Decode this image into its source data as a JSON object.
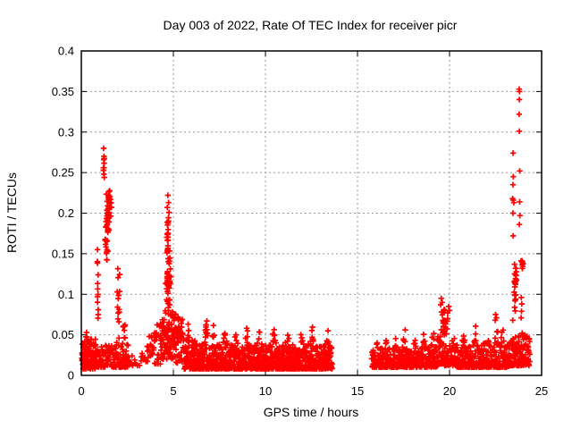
{
  "window": {
    "background_color": "#ffffff"
  },
  "chart_data": {
    "type": "scatter",
    "title": "Day 003 of 2022, Rate Of TEC Index for receiver picr",
    "xlabel": "GPS time / hours",
    "ylabel": "ROTI / TECUs",
    "xlim": [
      0,
      25
    ],
    "ylim": [
      0,
      0.4
    ],
    "xticks": [
      [
        "0",
        0
      ],
      [
        "5",
        5
      ],
      [
        "10",
        10
      ],
      [
        "15",
        15
      ],
      [
        "20",
        20
      ],
      [
        "25",
        25
      ]
    ],
    "yticks": [
      [
        "0",
        0
      ],
      [
        "0.05",
        0.05
      ],
      [
        "0.1",
        0.1
      ],
      [
        "0.15",
        0.15
      ],
      [
        "0.2",
        0.2
      ],
      [
        "0.25",
        0.25
      ],
      [
        "0.3",
        0.3
      ],
      [
        "0.35",
        0.35
      ],
      [
        "0.4",
        0.4
      ]
    ],
    "grid": true,
    "legend": "none",
    "series_name": "ROTI",
    "marker": {
      "shape": "plus",
      "color": "#ff0000",
      "size": 7,
      "stroke_width": 1.7
    },
    "grid_color": "#9a9a9a",
    "border_color": "#000000",
    "data_gaps_hours": [
      [
        13.62,
        15.78
      ]
    ],
    "bands": [
      {
        "x0": 0.03,
        "x1": 0.8,
        "ymin": 0.008,
        "ymax": 0.045,
        "step": 0.022,
        "per": 3,
        "bias": 1.6,
        "bumps": [
          [
            0.25,
            0.01,
            0.1
          ]
        ]
      },
      {
        "x0": 0.8,
        "x1": 1.05,
        "ymin": 0.01,
        "ymax": 0.036,
        "step": 0.035,
        "per": 2,
        "bias": 1.5,
        "bumps": []
      },
      {
        "x0": 1.05,
        "x1": 2.6,
        "ymin": 0.01,
        "ymax": 0.038,
        "step": 0.03,
        "per": 2,
        "bias": 1.8,
        "bumps": [
          [
            2.05,
            0.014,
            0.18
          ]
        ]
      },
      {
        "x0": 2.6,
        "x1": 3.6,
        "ymin": 0.012,
        "ymax": 0.028,
        "step": 0.09,
        "per": 1,
        "bias": 1.5,
        "bumps": []
      },
      {
        "x0": 3.6,
        "x1": 4.3,
        "ymin": 0.014,
        "ymax": 0.052,
        "step": 0.04,
        "per": 2,
        "bias": 1.6,
        "bumps": [
          [
            4.15,
            0.018,
            0.12
          ]
        ]
      },
      {
        "x0": 4.3,
        "x1": 5.15,
        "ymin": 0.02,
        "ymax": 0.075,
        "step": 0.025,
        "per": 3,
        "bias": 1.4,
        "bumps": [
          [
            4.72,
            0.02,
            0.2
          ]
        ]
      },
      {
        "x0": 5.15,
        "x1": 5.6,
        "ymin": 0.015,
        "ymax": 0.055,
        "step": 0.03,
        "per": 2,
        "bias": 1.6,
        "bumps": []
      },
      {
        "x0": 5.6,
        "x1": 13.62,
        "ymin": 0.008,
        "ymax": 0.038,
        "step": 0.03,
        "per": 4,
        "bias": 2.0,
        "bumps": [
          [
            5.8,
            0.028,
            0.08
          ],
          [
            6.1,
            0.016,
            0.08
          ],
          [
            6.78,
            0.036,
            0.08
          ],
          [
            7.15,
            0.032,
            0.07
          ],
          [
            7.8,
            0.02,
            0.09
          ],
          [
            8.35,
            0.016,
            0.09
          ],
          [
            9.0,
            0.024,
            0.09
          ],
          [
            9.65,
            0.018,
            0.09
          ],
          [
            10.45,
            0.022,
            0.09
          ],
          [
            11.2,
            0.016,
            0.09
          ],
          [
            11.95,
            0.014,
            0.09
          ],
          [
            12.55,
            0.024,
            0.09
          ],
          [
            13.35,
            0.024,
            0.08
          ]
        ]
      },
      {
        "x0": 15.78,
        "x1": 19.35,
        "ymin": 0.01,
        "ymax": 0.035,
        "step": 0.03,
        "per": 3,
        "bias": 2.0,
        "bumps": [
          [
            16.1,
            0.014,
            0.08
          ],
          [
            16.55,
            0.01,
            0.08
          ],
          [
            17.1,
            0.014,
            0.08
          ],
          [
            17.55,
            0.026,
            0.07
          ],
          [
            18.1,
            0.012,
            0.08
          ],
          [
            18.6,
            0.016,
            0.08
          ],
          [
            19.1,
            0.026,
            0.07
          ]
        ]
      },
      {
        "x0": 19.35,
        "x1": 20.35,
        "ymin": 0.012,
        "ymax": 0.048,
        "step": 0.03,
        "per": 3,
        "bias": 1.7,
        "bumps": [
          [
            19.7,
            0.022,
            0.18
          ]
        ]
      },
      {
        "x0": 20.35,
        "x1": 23.25,
        "ymin": 0.01,
        "ymax": 0.038,
        "step": 0.03,
        "per": 3,
        "bias": 2.0,
        "bumps": [
          [
            20.8,
            0.014,
            0.1
          ],
          [
            21.45,
            0.026,
            0.1
          ],
          [
            22.0,
            0.018,
            0.1
          ],
          [
            22.55,
            0.032,
            0.1
          ],
          [
            22.85,
            0.028,
            0.09
          ]
        ]
      },
      {
        "x0": 23.25,
        "x1": 24.35,
        "ymin": 0.012,
        "ymax": 0.048,
        "step": 0.025,
        "per": 3,
        "bias": 1.7,
        "bumps": [
          [
            23.95,
            0.012,
            0.15
          ]
        ]
      }
    ],
    "blobs": [
      [
        0.895,
        0.1,
        0.035,
        0.048,
        11
      ],
      [
        1.22,
        0.258,
        0.05,
        0.02,
        7
      ],
      [
        1.46,
        0.195,
        0.2,
        0.04,
        45
      ],
      [
        1.38,
        0.155,
        0.1,
        0.018,
        10
      ],
      [
        2.02,
        0.095,
        0.1,
        0.042,
        14
      ],
      [
        2.32,
        0.052,
        0.09,
        0.012,
        7
      ],
      [
        4.72,
        0.115,
        0.18,
        0.055,
        45
      ],
      [
        4.71,
        0.18,
        0.1,
        0.028,
        16
      ],
      [
        5.28,
        0.058,
        0.22,
        0.026,
        22
      ],
      [
        6.78,
        0.06,
        0.06,
        0.012,
        6
      ],
      [
        19.72,
        0.068,
        0.28,
        0.02,
        18
      ],
      [
        23.6,
        0.12,
        0.12,
        0.03,
        18
      ],
      [
        23.95,
        0.137,
        0.09,
        0.011,
        9
      ],
      [
        23.55,
        0.095,
        0.1,
        0.018,
        8
      ]
    ],
    "points": [
      [
        1.21,
        0.28
      ],
      [
        1.22,
        0.266
      ],
      [
        1.2,
        0.256
      ],
      [
        1.23,
        0.248
      ],
      [
        0.88,
        0.155
      ],
      [
        0.87,
        0.14
      ],
      [
        4.7,
        0.222
      ],
      [
        4.74,
        0.213
      ],
      [
        4.67,
        0.207
      ],
      [
        4.76,
        0.201
      ],
      [
        13.4,
        0.055
      ],
      [
        19.55,
        0.095
      ],
      [
        19.6,
        0.09
      ],
      [
        19.52,
        0.087
      ],
      [
        19.95,
        0.085
      ],
      [
        20.0,
        0.08
      ],
      [
        19.9,
        0.077
      ],
      [
        22.5,
        0.075
      ],
      [
        22.55,
        0.071
      ],
      [
        22.48,
        0.068
      ],
      [
        23.78,
        0.353
      ],
      [
        23.8,
        0.35
      ],
      [
        23.79,
        0.34
      ],
      [
        23.78,
        0.322
      ],
      [
        23.79,
        0.301
      ],
      [
        23.45,
        0.274
      ],
      [
        23.81,
        0.252
      ],
      [
        23.46,
        0.245
      ],
      [
        23.44,
        0.235
      ],
      [
        23.42,
        0.218
      ],
      [
        23.46,
        0.216
      ],
      [
        23.49,
        0.213
      ],
      [
        23.81,
        0.214
      ],
      [
        23.44,
        0.2
      ],
      [
        23.82,
        0.197
      ],
      [
        23.79,
        0.186
      ],
      [
        23.45,
        0.172
      ],
      [
        23.9,
        0.096
      ],
      [
        23.92,
        0.088
      ],
      [
        23.91,
        0.079
      ],
      [
        23.89,
        0.071
      ],
      [
        23.43,
        0.068
      ],
      [
        3.3,
        0.027
      ],
      [
        3.25,
        0.018
      ],
      [
        3.45,
        0.022
      ],
      [
        2.75,
        0.024
      ],
      [
        2.9,
        0.019
      ],
      [
        2.44,
        0.03
      ],
      [
        2.44,
        0.015
      ]
    ]
  }
}
